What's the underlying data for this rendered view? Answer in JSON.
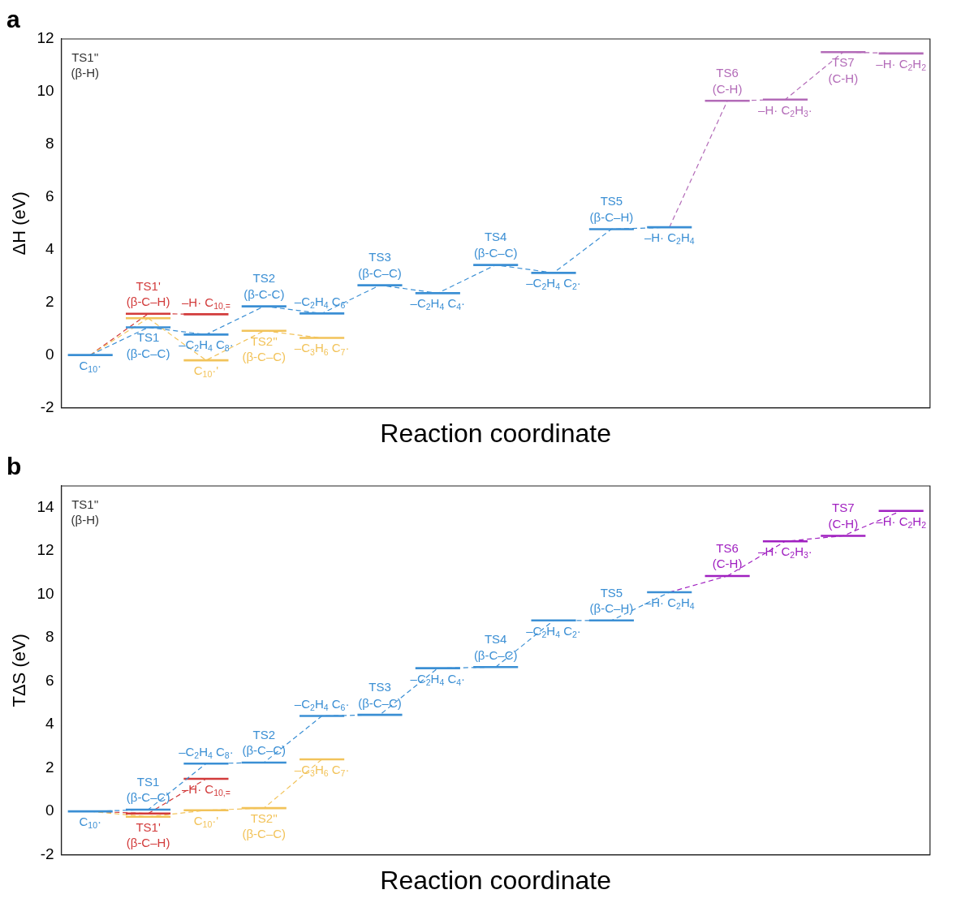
{
  "chart_data": [
    {
      "type": "line",
      "title": "a",
      "xlabel": "Reaction coordinate",
      "ylabel": "ΔH (eV)",
      "categories": [
        null,
        null,
        null,
        null,
        null,
        null,
        null,
        null,
        null,
        null,
        null,
        null,
        null,
        null,
        null
      ],
      "ylim": [
        -2,
        12
      ],
      "yticks": [
        -2,
        0,
        2,
        4,
        6,
        8,
        10,
        12
      ],
      "tick_labels": "y",
      "grid": false,
      "legend": false,
      "line_style": "dashed",
      "series": [
        {
          "color": "#3b8fd4",
          "values": [
            0,
            1.05,
            0.78,
            1.85,
            1.58,
            2.65,
            2.35,
            3.42,
            3.12,
            4.78,
            4.85,
            null,
            null,
            null,
            null
          ]
        },
        {
          "color": "#d23b3b",
          "values": [
            null,
            1.57,
            1.55,
            null,
            null,
            null,
            null,
            null,
            null,
            null,
            null,
            null,
            null,
            null,
            null
          ]
        },
        {
          "color": "#f2c35a",
          "values": [
            null,
            1.4,
            -0.2,
            0.92,
            0.65,
            null,
            null,
            null,
            null,
            null,
            null,
            null,
            null,
            null,
            null
          ]
        },
        {
          "color": "#b36bb8",
          "values": [
            null,
            null,
            null,
            null,
            null,
            null,
            null,
            null,
            null,
            null,
            null,
            9.65,
            9.7,
            11.5,
            11.45
          ]
        }
      ],
      "annotations": [
        {
          "text": "C$_{10}$·",
          "y": 0
        },
        {
          "text": "TS1\n(β-C–C)",
          "y": 1.05
        },
        {
          "text": "TS1'\n(β-C–H)",
          "y": 1.57
        },
        "TS1''\n(β-H)",
        {
          "text": "–C$_{2}$H$_{4}$ C$_{8}$·",
          "y": 0.78
        },
        {
          "text": "–H· C$_{10,=}$",
          "y": 1.55
        },
        {
          "text": "C$_{10}$·'",
          "y": -0.2
        },
        {
          "text": "TS2\n(β-C-C)",
          "y": 1.85
        },
        {
          "text": "TS2''\n(β-C–C)",
          "y": 0.92
        },
        {
          "text": "–C$_{2}$H$_{4}$ C$_{6}$·",
          "y": 1.58
        },
        {
          "text": "–C$_{3}$H$_{6}$ C$_{7}$·",
          "y": 0.65
        },
        {
          "text": "TS3\n(β-C–C)",
          "y": 2.65
        },
        {
          "text": "–C$_{2}$H$_{4}$ C$_{4}$·",
          "y": 2.35
        },
        {
          "text": "TS4\n(β-C–C)",
          "y": 3.42
        },
        {
          "text": "–C$_{2}$H$_{4}$ C$_{2}$·",
          "y": 3.12
        },
        {
          "text": "TS5\n(β-C–H)",
          "y": 4.78
        },
        {
          "text": "–H· C$_{2}$H$_{4}$",
          "y": 4.85
        },
        {
          "text": "TS6\n(C-H)",
          "y": 9.65
        },
        {
          "text": "–H· C$_{2}$H$_{3}$·",
          "y": 9.7
        },
        {
          "text": "TS7\n(C-H)",
          "y": 11.5
        },
        {
          "text": "–H· C$_{2}$H$_{2}$",
          "y": 11.45
        }
      ]
    },
    {
      "type": "line",
      "title": "b",
      "xlabel": "Reaction coordinate",
      "ylabel": "TΔS (eV)",
      "categories": [
        null,
        null,
        null,
        null,
        null,
        null,
        null,
        null,
        null,
        null,
        null,
        null,
        null,
        null,
        null
      ],
      "ylim": [
        -2,
        15
      ],
      "yticks": [
        -2,
        0,
        2,
        4,
        6,
        8,
        10,
        12,
        14
      ],
      "tick_labels": "y",
      "grid": false,
      "legend": false,
      "line_style": "dashed",
      "series": [
        {
          "color": "#3b8fd4",
          "values": [
            0,
            0.08,
            2.2,
            2.25,
            4.4,
            4.45,
            6.6,
            6.65,
            8.8,
            8.8,
            10.1,
            null,
            null,
            null,
            null
          ]
        },
        {
          "color": "#d23b3b",
          "values": [
            null,
            -0.1,
            1.5,
            null,
            null,
            null,
            null,
            null,
            null,
            null,
            null,
            null,
            null,
            null,
            null
          ]
        },
        {
          "color": "#f2c35a",
          "values": [
            null,
            -0.25,
            0.05,
            0.15,
            2.4,
            null,
            null,
            null,
            null,
            null,
            null,
            null,
            null,
            null,
            null
          ]
        },
        {
          "color": "#a020c0",
          "values": [
            null,
            null,
            null,
            null,
            null,
            null,
            null,
            null,
            null,
            null,
            null,
            10.85,
            12.45,
            12.7,
            13.85
          ]
        }
      ],
      "annotations": [
        {
          "text": "C$_{10}$·",
          "y": 0
        },
        {
          "text": "TS1\n(β-C–C)",
          "y": 0.08
        },
        {
          "text": "TS1'\n(β-C–H)",
          "y": -0.1
        },
        "TS1''\n(β-H)",
        {
          "text": "–C$_{2}$H$_{4}$ C$_{8}$·",
          "y": 2.2
        },
        {
          "text": "–H· C$_{10,=}$",
          "y": 1.5
        },
        {
          "text": "C$_{10}$·'",
          "y": 0.05
        },
        {
          "text": "TS2\n(β-C–C)",
          "y": 2.25
        },
        {
          "text": "TS2''\n(β-C–C)",
          "y": 0.15
        },
        {
          "text": "–C$_{2}$H$_{4}$ C$_{6}$·",
          "y": 4.4
        },
        {
          "text": "–C$_{3}$H$_{6}$ C$_{7}$·",
          "y": 2.4
        },
        {
          "text": "TS3\n(β-C–C)",
          "y": 4.45
        },
        {
          "text": "–C$_{2}$H$_{4}$ C$_{4}$·",
          "y": 6.6
        },
        {
          "text": "TS4\n(β-C–C)",
          "y": 6.65
        },
        {
          "text": "–C$_{2}$H$_{4}$ C$_{2}$·",
          "y": 8.8
        },
        {
          "text": "TS5\n(β-C–H)",
          "y": 8.8
        },
        {
          "text": "–H· C$_{2}$H$_{4}$",
          "y": 10.1
        },
        {
          "text": "TS6\n(C-H)",
          "y": 10.85
        },
        {
          "text": "–H· C$_{2}$H$_{3}$·",
          "y": 12.45
        },
        {
          "text": "TS7\n(C-H)",
          "y": 12.7
        },
        {
          "text": "–H· C$_{2}$H$_{2}$",
          "y": 13.85
        }
      ]
    }
  ]
}
